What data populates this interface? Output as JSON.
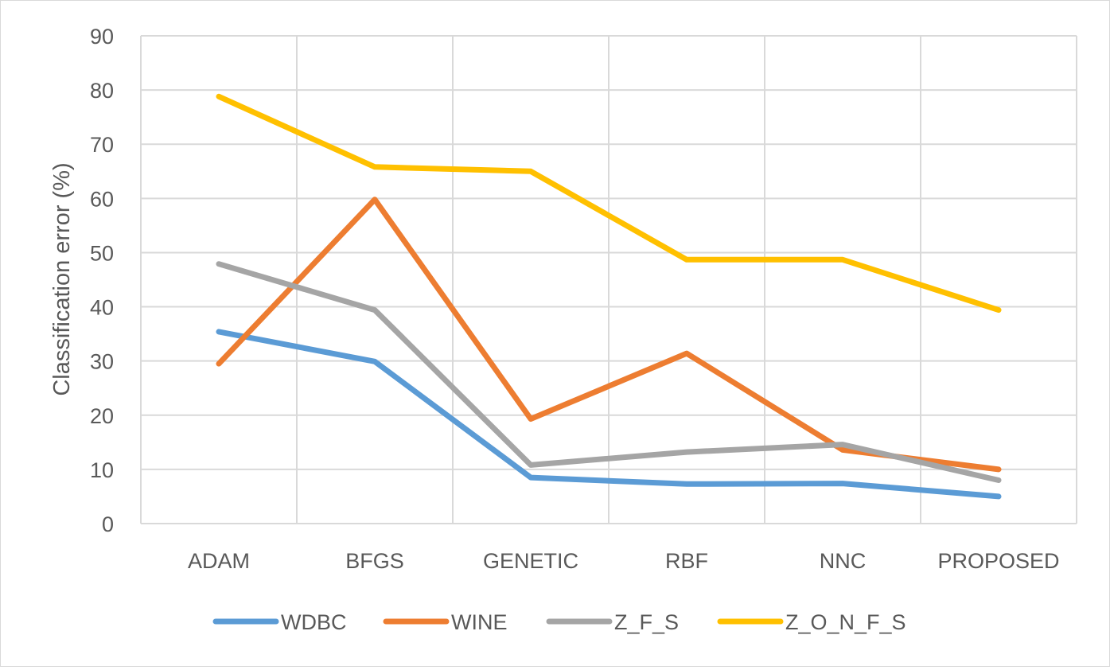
{
  "chart_data": {
    "type": "line",
    "title": "",
    "xlabel": "",
    "ylabel": "Classification error (%)",
    "ylim": [
      0,
      90
    ],
    "yticks": [
      0,
      10,
      20,
      30,
      40,
      50,
      60,
      70,
      80,
      90
    ],
    "grid": true,
    "legend_position": "bottom",
    "categories": [
      "ADAM",
      "BFGS",
      "GENETIC",
      "RBF",
      "NNC",
      "PROPOSED"
    ],
    "series": [
      {
        "name": "WDBC",
        "color": "#5b9bd5",
        "values": [
          35.4,
          29.9,
          8.5,
          7.3,
          7.4,
          5.0
        ]
      },
      {
        "name": "WINE",
        "color": "#ed7d31",
        "values": [
          29.5,
          59.8,
          19.3,
          31.4,
          13.6,
          10.0
        ]
      },
      {
        "name": "Z_F_S",
        "color": "#a5a5a5",
        "values": [
          47.9,
          39.4,
          10.8,
          13.2,
          14.6,
          8.0
        ]
      },
      {
        "name": "Z_O_N_F_S",
        "color": "#ffc000",
        "values": [
          78.8,
          65.8,
          65.0,
          48.7,
          48.7,
          39.4
        ]
      }
    ]
  }
}
